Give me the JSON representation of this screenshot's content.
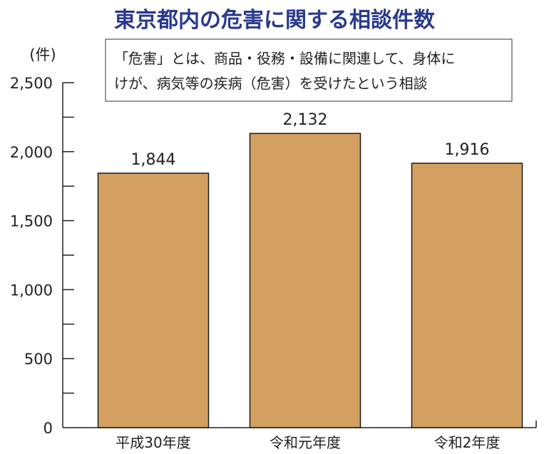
{
  "chart_data": {
    "type": "bar",
    "title": "東京都内の危害に関する相談件数",
    "unit_label": "(件)",
    "note_lines": [
      "「危害」とは、商品・役務・設備に関連して、身体に",
      "けが、病気等の疾病（危害）を受けたという相談"
    ],
    "categories": [
      "平成30年度",
      "令和元年度",
      "令和2年度"
    ],
    "values": [
      1844,
      2132,
      1916
    ],
    "value_labels": [
      "1,844",
      "2,132",
      "1,916"
    ],
    "ylim": [
      0,
      2500
    ],
    "y_ticks": [
      0,
      500,
      1000,
      1500,
      2000,
      2500
    ],
    "y_tick_labels": [
      "0",
      "500",
      "1,000",
      "1,500",
      "2,000",
      "2,500"
    ],
    "grid": false,
    "colors": {
      "title": "#2a3a8c",
      "bar_fill": "#d3a062",
      "bar_stroke": "#1a1a1a",
      "axis": "#222222"
    }
  }
}
